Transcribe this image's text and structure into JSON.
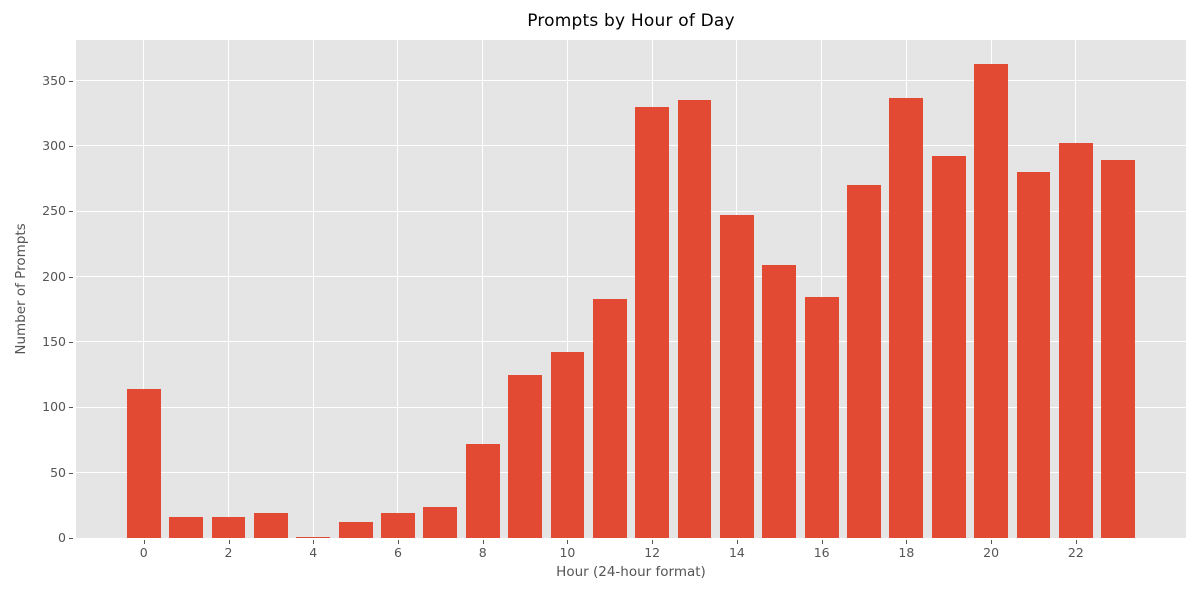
{
  "chart_data": {
    "type": "bar",
    "title": "Prompts by Hour of Day",
    "xlabel": "Hour (24-hour format)",
    "ylabel": "Number of Prompts",
    "x": [
      0,
      1,
      2,
      3,
      4,
      5,
      6,
      7,
      8,
      9,
      10,
      11,
      12,
      13,
      14,
      15,
      16,
      17,
      18,
      19,
      20,
      21,
      22,
      23
    ],
    "values": [
      114,
      16,
      16,
      19,
      1,
      12,
      19,
      24,
      72,
      125,
      142,
      183,
      330,
      335,
      247,
      209,
      184,
      270,
      337,
      292,
      363,
      280,
      302,
      289
    ],
    "xticks": [
      0,
      2,
      4,
      6,
      8,
      10,
      12,
      14,
      16,
      18,
      20,
      22
    ],
    "yticks": [
      0,
      50,
      100,
      150,
      200,
      250,
      300,
      350
    ],
    "xlim": [
      -1.6,
      24.6
    ],
    "ylim": [
      0,
      381
    ],
    "bar_width": 0.8,
    "grid": true,
    "legend": "none",
    "colors": {
      "bar": "#E24A33",
      "plot_background": "#E5E5E5",
      "gridline": "#FFFFFF",
      "tick_text": "#555555",
      "tick_mark": "#555555",
      "axis_label_text": "#555555",
      "title_text": "#000000",
      "figure_background": "#FFFFFF"
    }
  }
}
